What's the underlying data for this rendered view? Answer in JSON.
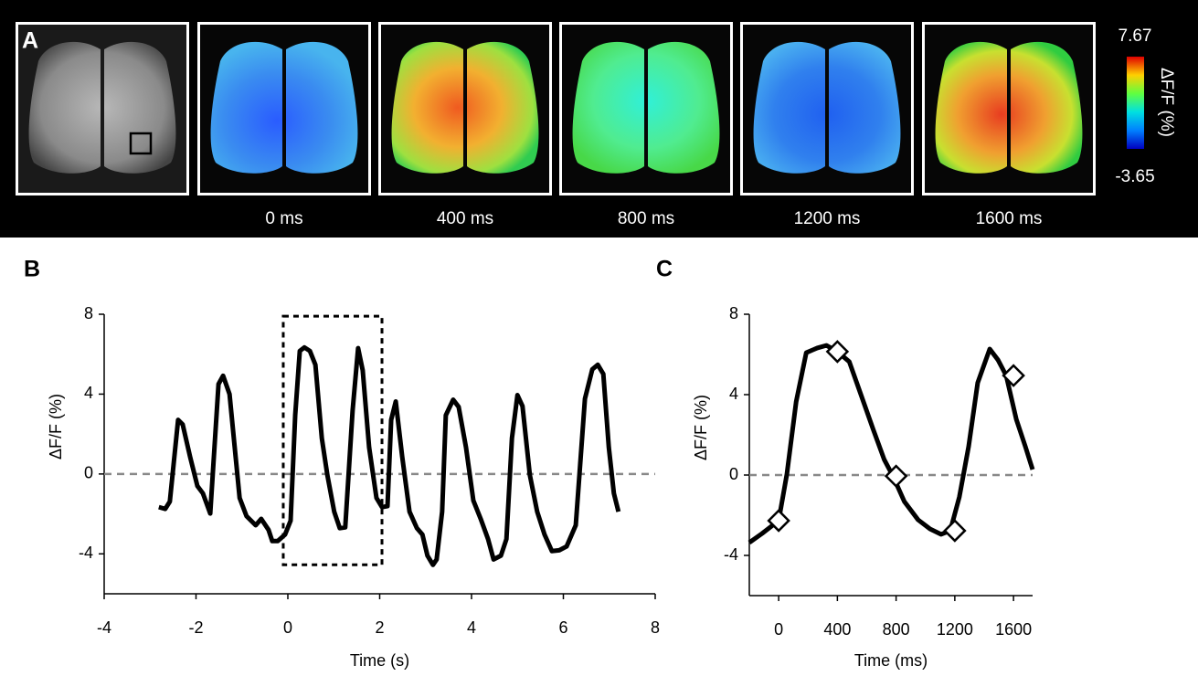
{
  "chart_data": [
    {
      "type": "image-panel",
      "label": "A",
      "frame_labels": [
        "0 ms",
        "400 ms",
        "800 ms",
        "1200 ms",
        "1600 ms"
      ],
      "colorbar": {
        "max": 7.67,
        "min": -3.65,
        "label": "ΔF/F (%)"
      }
    },
    {
      "type": "line",
      "label": "B",
      "xlabel": "Time (s)",
      "ylabel": "ΔF/F (%)",
      "xlim": [
        -4,
        8
      ],
      "ylim": [
        -6,
        8
      ],
      "xticks": [
        -4,
        -2,
        0,
        2,
        4,
        6,
        8
      ],
      "yticks": [
        -4,
        0,
        4,
        8
      ],
      "hline": 0,
      "region": {
        "x": [
          -0.1,
          2.05
        ],
        "y": [
          -4.55,
          7.9
        ]
      },
      "series": [
        {
          "color": "#000000",
          "x": [
            -2.81,
            -2.67,
            -2.57,
            -2.39,
            -2.29,
            -2.13,
            -1.97,
            -1.85,
            -1.69,
            -1.51,
            -1.41,
            -1.27,
            -1.05,
            -0.9,
            -0.7,
            -0.58,
            -0.42,
            -0.34,
            -0.22,
            -0.06,
            0.06,
            0.16,
            0.26,
            0.36,
            0.48,
            0.6,
            0.74,
            0.86,
            1.01,
            1.13,
            1.25,
            1.41,
            1.53,
            1.63,
            1.77,
            1.93,
            2.05,
            2.17,
            2.25,
            2.35,
            2.49,
            2.65,
            2.81,
            2.93,
            3.04,
            3.16,
            3.24,
            3.36,
            3.44,
            3.6,
            3.72,
            3.88,
            4.04,
            4.2,
            4.36,
            4.48,
            4.64,
            4.76,
            4.88,
            5.0,
            5.11,
            5.27,
            5.43,
            5.59,
            5.75,
            5.91,
            6.07,
            6.27,
            6.47,
            6.63,
            6.75,
            6.87,
            6.99,
            7.1,
            7.2
          ],
          "values": [
            -1.66,
            -1.75,
            -1.38,
            2.71,
            2.48,
            0.87,
            -0.6,
            -0.97,
            -1.98,
            4.5,
            4.92,
            4.0,
            -1.2,
            -2.11,
            -2.57,
            -2.25,
            -2.8,
            -3.36,
            -3.36,
            -3.03,
            -2.34,
            2.94,
            6.16,
            6.34,
            6.16,
            5.47,
            1.79,
            -0.05,
            -1.89,
            -2.71,
            -2.67,
            3.17,
            6.3,
            5.2,
            1.33,
            -1.2,
            -1.66,
            -1.61,
            2.71,
            3.63,
            0.87,
            -1.89,
            -2.71,
            -3.03,
            -4.09,
            -4.55,
            -4.28,
            -1.89,
            2.94,
            3.72,
            3.36,
            1.33,
            -1.33,
            -2.25,
            -3.26,
            -4.28,
            -4.09,
            -3.26,
            1.79,
            3.95,
            3.4,
            -0.05,
            -1.89,
            -3.03,
            -3.86,
            -3.82,
            -3.63,
            -2.57,
            3.77,
            5.24,
            5.47,
            5.01,
            1.33,
            -0.97,
            -1.89
          ]
        }
      ]
    },
    {
      "type": "line",
      "label": "C",
      "xlabel": "Time (ms)",
      "ylabel": "ΔF/F (%)",
      "xlim": [
        -200,
        1730
      ],
      "ylim": [
        -6,
        8
      ],
      "xticks": [
        0,
        400,
        800,
        1200,
        1600
      ],
      "yticks": [
        -4,
        0,
        4,
        8
      ],
      "hline": 0,
      "series": [
        {
          "color": "#000000",
          "x": [
            -200,
            -113,
            0,
            56,
            119,
            188,
            263,
            325,
            400,
            481,
            556,
            644,
            719,
            781,
            856,
            950,
            1031,
            1106,
            1169,
            1231,
            1294,
            1356,
            1438,
            1494,
            1550,
            1619,
            1681,
            1730
          ],
          "values": [
            -3.36,
            -2.91,
            -2.27,
            0.05,
            3.64,
            6.09,
            6.32,
            6.45,
            6.14,
            5.64,
            4.09,
            2.27,
            0.77,
            -0.09,
            -1.32,
            -2.23,
            -2.68,
            -2.95,
            -2.77,
            -1.09,
            1.41,
            4.59,
            6.27,
            5.73,
            4.95,
            2.77,
            1.41,
            0.27
          ]
        },
        {
          "marker": "diamond",
          "color": "#ffffff",
          "x": [
            0,
            400,
            800,
            1200,
            1600
          ],
          "values": [
            -2.27,
            6.14,
            -0.05,
            -2.77,
            4.95
          ]
        }
      ]
    }
  ]
}
